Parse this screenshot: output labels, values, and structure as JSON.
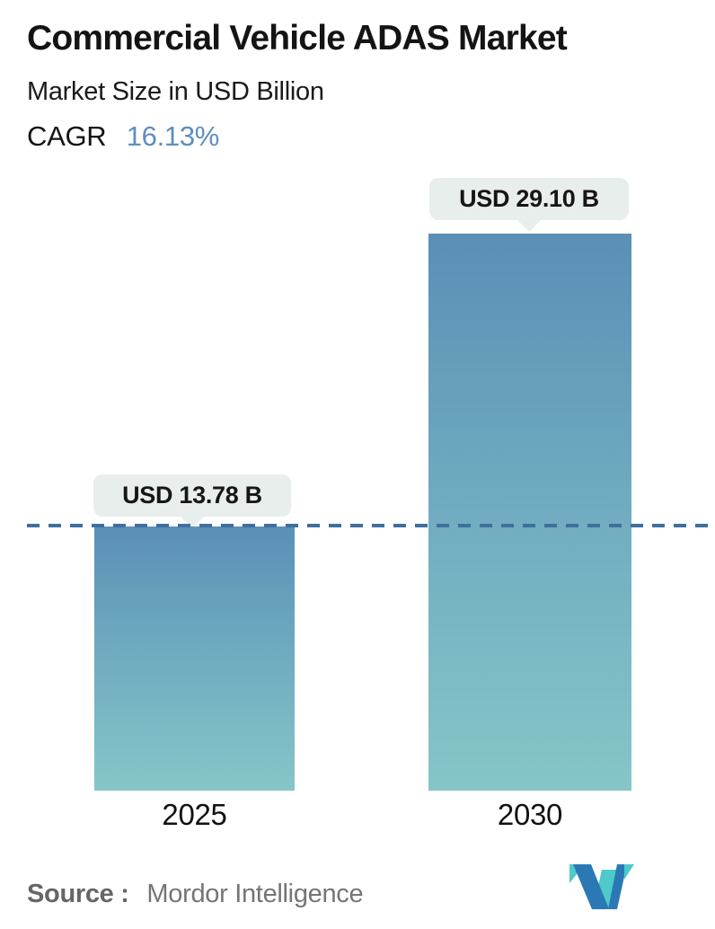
{
  "header": {
    "title": "Commercial Vehicle ADAS Market",
    "subtitle": "Market Size in USD Billion",
    "cagr_label": "CAGR",
    "cagr_value": "16.13%"
  },
  "chart_data": {
    "type": "bar",
    "title": "Commercial Vehicle ADAS Market",
    "subtitle": "Market Size in USD Billion",
    "categories": [
      "2025",
      "2030"
    ],
    "values": [
      13.78,
      29.1
    ],
    "value_labels": [
      "USD 13.78 B",
      "USD 29.10 B"
    ],
    "ylim": [
      0,
      29.1
    ],
    "grid": false,
    "legend": "none",
    "reference_line": {
      "at": 13.78,
      "style": "dashed",
      "color": "#3f6f9e"
    },
    "cagr": {
      "label": "CAGR",
      "value": "16.13%"
    }
  },
  "footer": {
    "source_label": "Source :",
    "source_value": "Mordor Intelligence"
  },
  "colors": {
    "bar_gradient_top": "#5b8fb6",
    "bar_gradient_bottom": "#85c6c8",
    "dashed_line": "#3f6f9e",
    "cagr_accent": "#5d8fbc",
    "badge_background": "#e8eeec",
    "logo_blue": "#2b79b4",
    "logo_teal": "#4fc9c9"
  },
  "icons": {
    "logo": "mordor-intelligence-m-logo"
  }
}
